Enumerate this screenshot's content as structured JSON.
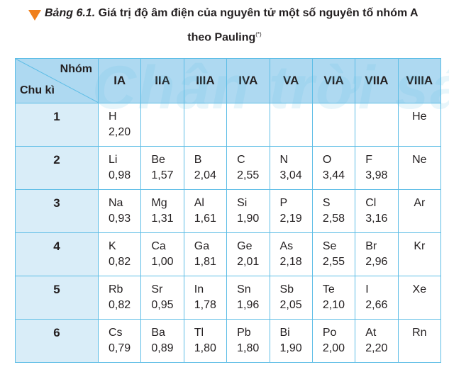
{
  "caption": {
    "label": "Bảng 6.1.",
    "title_line1": "Giá trị độ âm điện của nguyên tử một số nguyên tố nhóm A",
    "title_line2": "theo Pauling",
    "footnote_mark": "(*)"
  },
  "watermark": "Chân trời sáng",
  "table": {
    "corner_top": "Nhóm",
    "corner_bottom": "Chu kì",
    "groups": [
      "IA",
      "IIA",
      "IIIA",
      "IVA",
      "VA",
      "VIA",
      "VIIA",
      "VIIIA"
    ],
    "rows": [
      {
        "period": "1",
        "cells": [
          {
            "symbol": "H",
            "value": "2,20"
          },
          {
            "symbol": "",
            "value": ""
          },
          {
            "symbol": "",
            "value": ""
          },
          {
            "symbol": "",
            "value": ""
          },
          {
            "symbol": "",
            "value": ""
          },
          {
            "symbol": "",
            "value": ""
          },
          {
            "symbol": "",
            "value": ""
          },
          {
            "symbol": "He",
            "value": ""
          }
        ]
      },
      {
        "period": "2",
        "cells": [
          {
            "symbol": "Li",
            "value": "0,98"
          },
          {
            "symbol": "Be",
            "value": "1,57"
          },
          {
            "symbol": "B",
            "value": "2,04"
          },
          {
            "symbol": "C",
            "value": "2,55"
          },
          {
            "symbol": "N",
            "value": "3,04"
          },
          {
            "symbol": "O",
            "value": "3,44"
          },
          {
            "symbol": "F",
            "value": "3,98"
          },
          {
            "symbol": "Ne",
            "value": ""
          }
        ]
      },
      {
        "period": "3",
        "cells": [
          {
            "symbol": "Na",
            "value": "0,93"
          },
          {
            "symbol": "Mg",
            "value": "1,31"
          },
          {
            "symbol": "Al",
            "value": "1,61"
          },
          {
            "symbol": "Si",
            "value": "1,90"
          },
          {
            "symbol": "P",
            "value": "2,19"
          },
          {
            "symbol": "S",
            "value": "2,58"
          },
          {
            "symbol": "Cl",
            "value": "3,16"
          },
          {
            "symbol": "Ar",
            "value": ""
          }
        ]
      },
      {
        "period": "4",
        "cells": [
          {
            "symbol": "K",
            "value": "0,82"
          },
          {
            "symbol": "Ca",
            "value": "1,00"
          },
          {
            "symbol": "Ga",
            "value": "1,81"
          },
          {
            "symbol": "Ge",
            "value": "2,01"
          },
          {
            "symbol": "As",
            "value": "2,18"
          },
          {
            "symbol": "Se",
            "value": "2,55"
          },
          {
            "symbol": "Br",
            "value": "2,96"
          },
          {
            "symbol": "Kr",
            "value": ""
          }
        ]
      },
      {
        "period": "5",
        "cells": [
          {
            "symbol": "Rb",
            "value": "0,82"
          },
          {
            "symbol": "Sr",
            "value": "0,95"
          },
          {
            "symbol": "In",
            "value": "1,78"
          },
          {
            "symbol": "Sn",
            "value": "1,96"
          },
          {
            "symbol": "Sb",
            "value": "2,05"
          },
          {
            "symbol": "Te",
            "value": "2,10"
          },
          {
            "symbol": "I",
            "value": "2,66"
          },
          {
            "symbol": "Xe",
            "value": ""
          }
        ]
      },
      {
        "period": "6",
        "cells": [
          {
            "symbol": "Cs",
            "value": "0,79"
          },
          {
            "symbol": "Ba",
            "value": "0,89"
          },
          {
            "symbol": "Tl",
            "value": "1,80"
          },
          {
            "symbol": "Pb",
            "value": "1,80"
          },
          {
            "symbol": "Bi",
            "value": "1,90"
          },
          {
            "symbol": "Po",
            "value": "2,00"
          },
          {
            "symbol": "At",
            "value": "2,20"
          },
          {
            "symbol": "Rn",
            "value": ""
          }
        ]
      }
    ]
  },
  "colors": {
    "accent_triangle": "#f07f1b",
    "header_bg": "#aed9f1",
    "period_bg": "#d9edf8",
    "border": "#5dbde6"
  }
}
